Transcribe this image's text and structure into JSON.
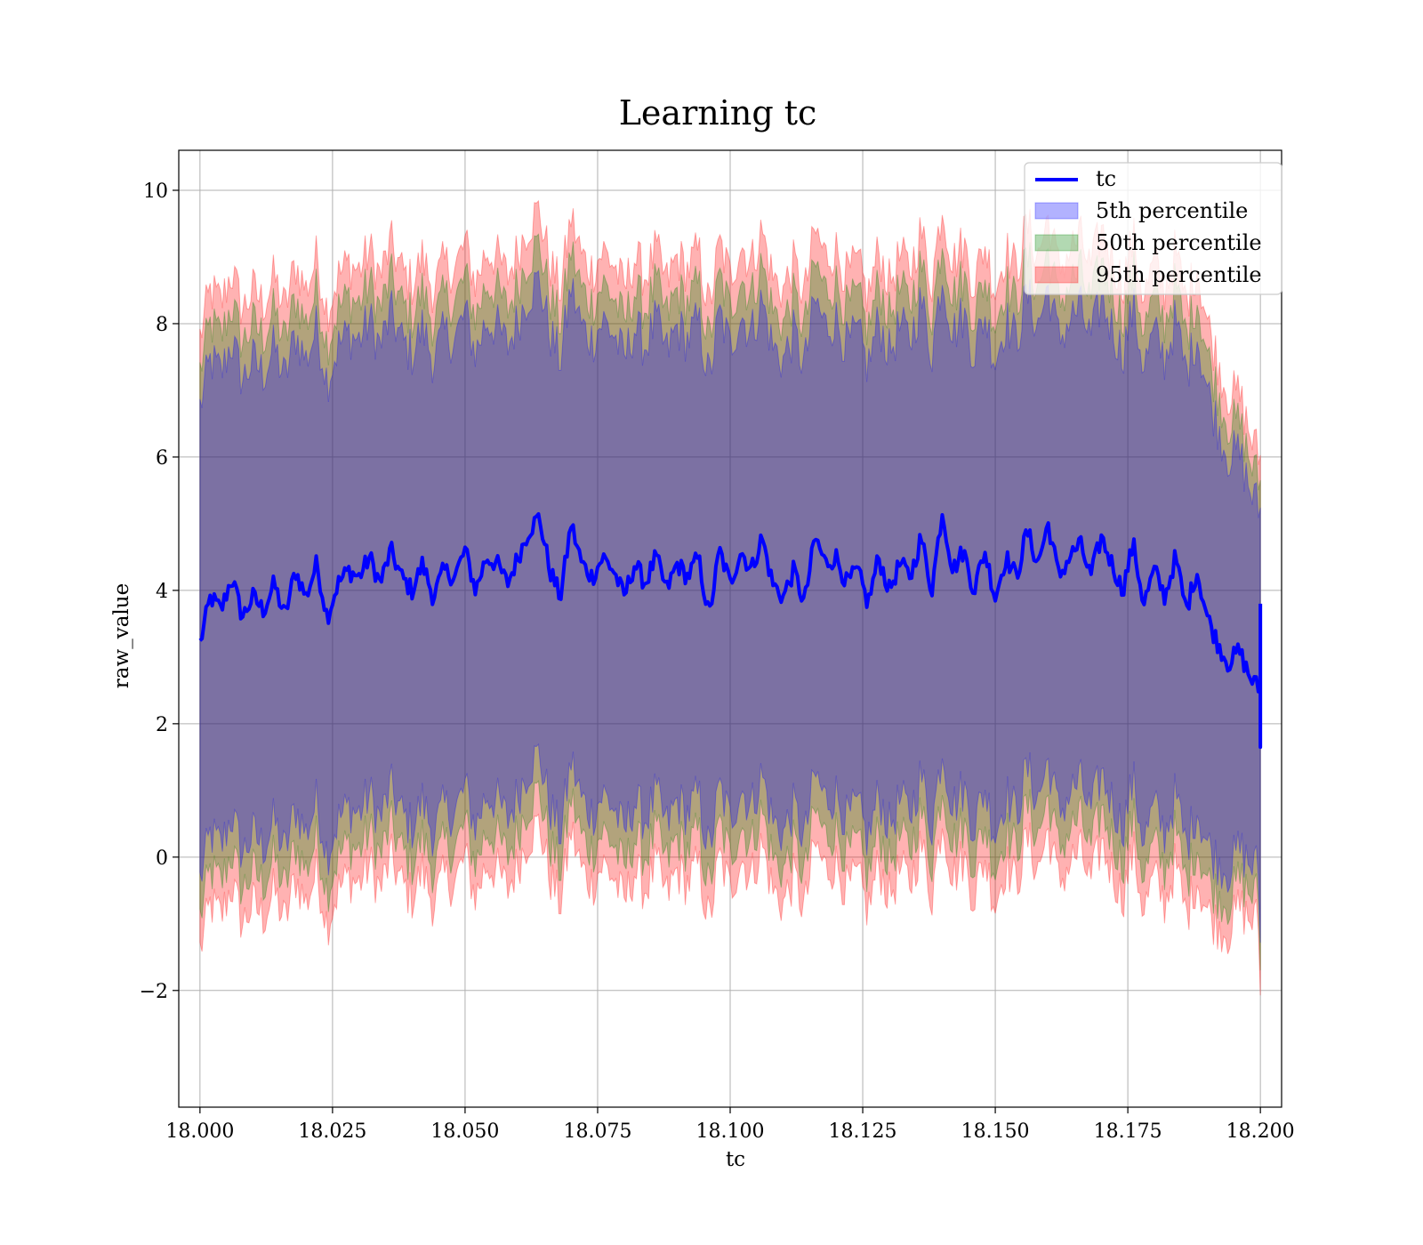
{
  "chart_data": {
    "type": "area",
    "title": "Learning tc",
    "xlabel": "tc",
    "ylabel": "raw_value",
    "xlim": [
      17.996,
      18.204
    ],
    "ylim": [
      -3.75,
      10.6
    ],
    "x_range": [
      18.0,
      18.2
    ],
    "xticks": [
      18.0,
      18.025,
      18.05,
      18.075,
      18.1,
      18.125,
      18.15,
      18.175,
      18.2
    ],
    "xtick_labels": [
      "18.000",
      "18.025",
      "18.050",
      "18.075",
      "18.100",
      "18.125",
      "18.150",
      "18.175",
      "18.200"
    ],
    "yticks": [
      -2,
      0,
      2,
      4,
      6,
      8,
      10
    ],
    "ytick_labels": [
      "−2",
      "0",
      "2",
      "4",
      "6",
      "8",
      "10"
    ],
    "grid": true,
    "legend_position": "top-right",
    "line_series": {
      "name": "tc",
      "color": "#0000ff",
      "x": [
        18.0,
        18.002,
        18.004,
        18.006,
        18.008,
        18.01,
        18.012,
        18.014,
        18.016,
        18.018,
        18.02,
        18.022,
        18.024,
        18.026,
        18.028,
        18.03,
        18.032,
        18.034,
        18.036,
        18.038,
        18.04,
        18.042,
        18.044,
        18.046,
        18.048,
        18.05,
        18.052,
        18.054,
        18.056,
        18.058,
        18.06,
        18.062,
        18.064,
        18.066,
        18.068,
        18.07,
        18.072,
        18.074,
        18.076,
        18.078,
        18.08,
        18.082,
        18.084,
        18.086,
        18.088,
        18.09,
        18.092,
        18.094,
        18.096,
        18.098,
        18.1,
        18.102,
        18.104,
        18.106,
        18.108,
        18.11,
        18.112,
        18.114,
        18.116,
        18.118,
        18.12,
        18.122,
        18.124,
        18.126,
        18.128,
        18.13,
        18.132,
        18.134,
        18.136,
        18.138,
        18.14,
        18.142,
        18.144,
        18.146,
        18.148,
        18.15,
        18.152,
        18.154,
        18.156,
        18.158,
        18.16,
        18.162,
        18.164,
        18.166,
        18.168,
        18.17,
        18.172,
        18.174,
        18.176,
        18.178,
        18.18,
        18.182,
        18.184,
        18.186,
        18.188,
        18.19,
        18.192,
        18.194,
        18.196,
        18.198,
        18.2
      ],
      "y": [
        3.2,
        3.9,
        3.7,
        4.2,
        3.6,
        3.9,
        3.7,
        4.1,
        3.6,
        4.3,
        3.9,
        4.4,
        3.6,
        4.1,
        4.3,
        4.2,
        4.5,
        4.1,
        4.6,
        4.2,
        4.0,
        4.4,
        3.9,
        4.3,
        4.2,
        4.6,
        4.0,
        4.5,
        4.4,
        4.1,
        4.5,
        4.9,
        5.1,
        4.3,
        3.9,
        5.0,
        4.4,
        4.2,
        4.5,
        4.3,
        3.9,
        4.4,
        4.1,
        4.5,
        4.0,
        4.4,
        4.2,
        4.5,
        3.6,
        4.6,
        4.1,
        4.6,
        4.3,
        4.8,
        4.1,
        3.9,
        4.3,
        3.8,
        4.8,
        4.4,
        4.5,
        4.1,
        4.3,
        3.8,
        4.5,
        4.0,
        4.4,
        4.2,
        4.8,
        4.0,
        5.2,
        4.3,
        4.6,
        4.0,
        4.6,
        3.9,
        4.5,
        4.2,
        4.9,
        4.4,
        5.0,
        4.2,
        4.5,
        4.7,
        4.2,
        4.8,
        4.4,
        4.0,
        4.7,
        3.8,
        4.3,
        3.9,
        4.5,
        3.7,
        4.3,
        3.6,
        3.2,
        2.9,
        3.1,
        2.7,
        2.5
      ],
      "end_spike": {
        "x": 18.2,
        "y_min": 1.65,
        "y_max": 3.8
      }
    },
    "band_series": [
      {
        "name": "5th percentile",
        "color": "#0000ff",
        "upper_mean_offset": 3.55,
        "lower_mean_offset": -3.55
      },
      {
        "name": "50th percentile",
        "color": "#008000",
        "upper_mean_offset": 4.1,
        "lower_mean_offset": -4.1
      },
      {
        "name": "95th percentile",
        "color": "#ff0000",
        "upper_mean_offset": 4.6,
        "lower_mean_offset": -4.6
      }
    ]
  }
}
